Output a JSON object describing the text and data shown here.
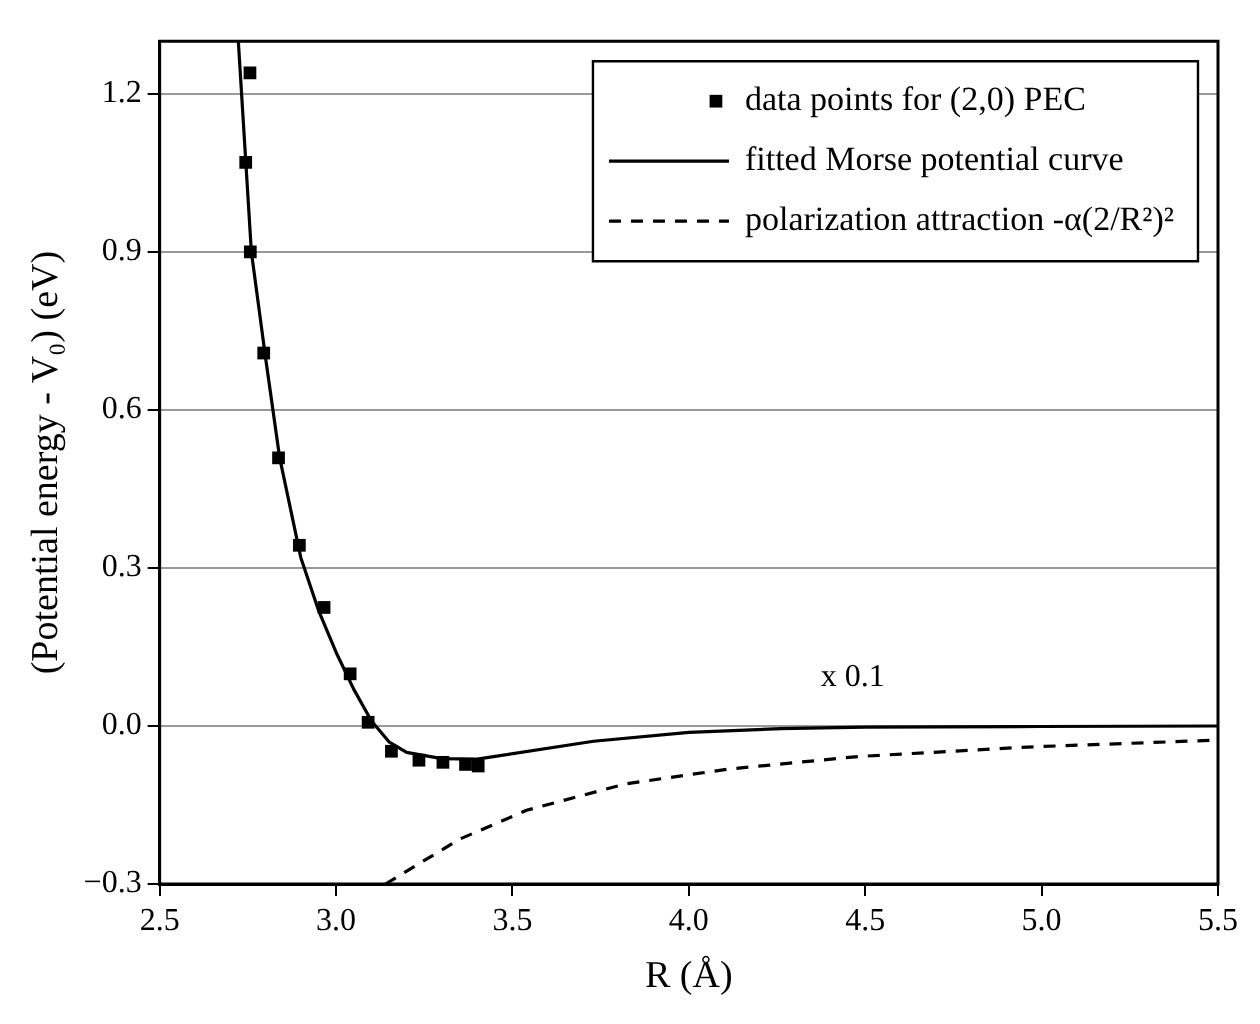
{
  "chart_data": {
    "type": "line",
    "xlabel": "R (Å)",
    "ylabel": "(Potential energy - V₀) (eV)",
    "xlim": [
      2.5,
      5.5
    ],
    "ylim": [
      -0.3,
      1.3
    ],
    "xticks": [
      2.5,
      {
        "value": 3,
        "label": "3.0"
      },
      3.5,
      {
        "value": 4,
        "label": "4.0"
      },
      4.5,
      {
        "value": 5,
        "label": "5.0"
      },
      5.5
    ],
    "yticks": [
      {
        "value": -0.3,
        "label": "−0.3"
      },
      {
        "value": 0,
        "label": "0.0"
      },
      0.3,
      0.6,
      0.9,
      1.2
    ],
    "grid": "y",
    "legend": "top right",
    "annotations": [
      "x 0.1"
    ],
    "series": [
      {
        "name": "data points for (2,0) PEC",
        "type": "scatter",
        "marker": "square",
        "color": "#000000",
        "x": [
          2.756,
          2.744,
          2.757,
          2.795,
          2.837,
          2.896,
          2.966,
          3.04,
          3.091,
          3.157,
          3.235,
          3.303,
          3.367,
          3.403
        ],
        "values": [
          1.24,
          1.07,
          0.9,
          0.708,
          0.509,
          0.343,
          0.225,
          0.099,
          0.007,
          -0.048,
          -0.065,
          -0.069,
          -0.073,
          -0.076
        ]
      },
      {
        "name": "fitted Morse potential curve",
        "line_style": "solid",
        "color": "#000000",
        "x": [
          2.723,
          2.76,
          2.8,
          2.84,
          2.9,
          2.95,
          3.0,
          3.05,
          3.1,
          3.15,
          3.2,
          3.3,
          3.4,
          3.73,
          4.0,
          4.26,
          4.5,
          5.0,
          5.5
        ],
        "values": [
          1.3,
          0.9,
          0.7,
          0.51,
          0.32,
          0.22,
          0.14,
          0.07,
          0.01,
          -0.03,
          -0.05,
          -0.062,
          -0.063,
          -0.029,
          -0.012,
          -0.005,
          -0.002,
          -0.001,
          0.0
        ]
      },
      {
        "name": "polarization attraction -α(2/R²)²",
        "line_style": "dashed",
        "color": "#000000",
        "x": [
          3.14,
          3.35,
          3.54,
          3.82,
          4.11,
          4.48,
          4.96,
          5.49
        ],
        "values": [
          -0.3,
          -0.215,
          -0.16,
          -0.11,
          -0.082,
          -0.058,
          -0.04,
          -0.027
        ]
      }
    ]
  }
}
